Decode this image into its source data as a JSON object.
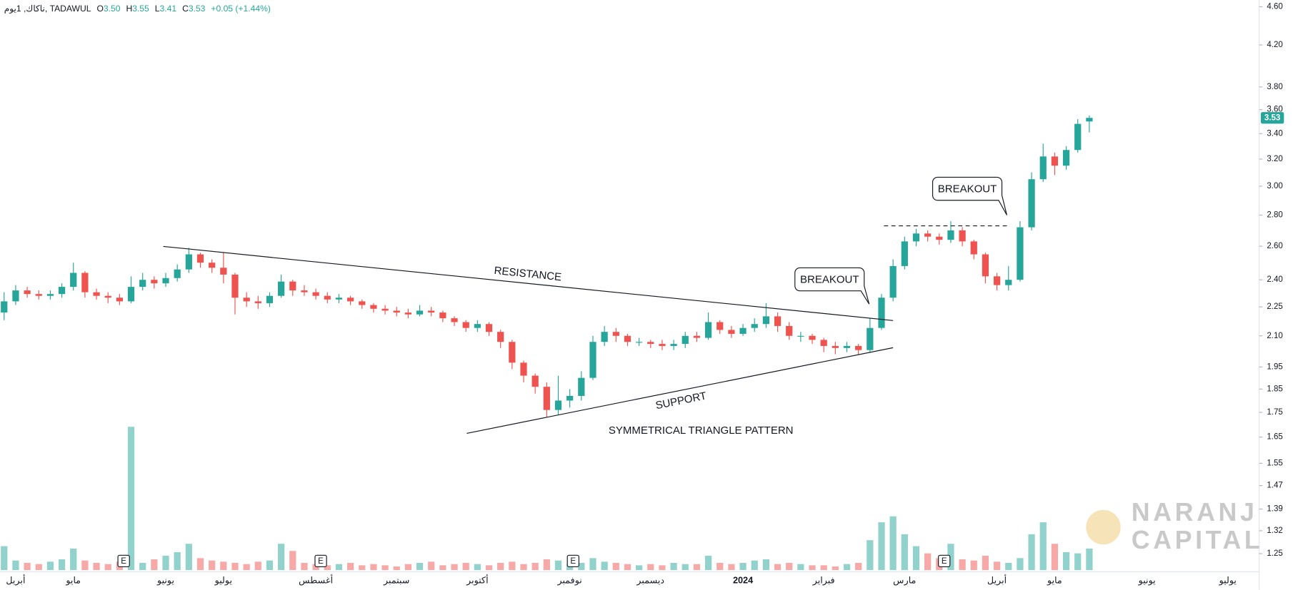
{
  "chart_data": {
    "type": "candlestick",
    "log_scale": true,
    "header": {
      "symbol": "ناكاك, 1يوم, TADAWUL",
      "items": [
        {
          "key": "O",
          "label": "3.50"
        },
        {
          "key": "H",
          "label": "3.55"
        },
        {
          "key": "L",
          "label": "3.41"
        },
        {
          "key": "C",
          "label": "3.53"
        }
      ],
      "change": "+0.05 (+1.44%)"
    },
    "up_color": "#26a69a",
    "down_color": "#ef5350",
    "ylim": [
      1.25,
      4.6
    ],
    "yticks": [
      {
        "value": 4.6,
        "label": "4.60"
      },
      {
        "value": 4.2,
        "label": "4.20"
      },
      {
        "value": 3.8,
        "label": "3.80"
      },
      {
        "value": 3.6,
        "label": "3.60"
      },
      {
        "value": 3.4,
        "label": "3.40"
      },
      {
        "value": 3.2,
        "label": "3.20"
      },
      {
        "value": 3,
        "label": "3.00"
      },
      {
        "value": 2.8,
        "label": "2.80"
      },
      {
        "value": 2.6,
        "label": "2.60"
      },
      {
        "value": 2.4,
        "label": "2.40"
      },
      {
        "value": 2.25,
        "label": "2.25"
      },
      {
        "value": 2.1,
        "label": "2.10"
      },
      {
        "value": 1.95,
        "label": "1.95"
      },
      {
        "value": 1.85,
        "label": "1.85"
      },
      {
        "value": 1.75,
        "label": "1.75"
      },
      {
        "value": 1.65,
        "label": "1.65"
      },
      {
        "value": 1.55,
        "label": "1.55"
      },
      {
        "value": 1.47,
        "label": "1.47"
      },
      {
        "value": 1.39,
        "label": "1.39"
      },
      {
        "value": 1.32,
        "label": "1.32"
      },
      {
        "value": 1.25,
        "label": "1.25"
      }
    ],
    "categories": [
      null,
      "أبريل",
      null,
      null,
      null,
      null,
      "مايو",
      null,
      null,
      null,
      null,
      null,
      null,
      null,
      "يونيو",
      null,
      null,
      null,
      null,
      "يوليو",
      null,
      null,
      null,
      null,
      null,
      null,
      null,
      "أغسطس",
      null,
      null,
      null,
      null,
      null,
      null,
      "سبتمبر",
      null,
      null,
      null,
      null,
      null,
      null,
      "أكتوبر",
      null,
      null,
      null,
      null,
      null,
      null,
      null,
      "نوفمبر",
      null,
      null,
      null,
      null,
      null,
      null,
      "ديسمبر",
      null,
      null,
      null,
      null,
      null,
      null,
      null,
      "2024",
      null,
      null,
      null,
      null,
      null,
      null,
      "فبراير",
      null,
      null,
      null,
      null,
      null,
      null,
      "مارس",
      null,
      null,
      null,
      null,
      null,
      null,
      null,
      "أبريل",
      null,
      null,
      null,
      null,
      "مايو",
      null,
      null,
      null,
      null,
      null,
      null,
      null,
      "يونيو",
      null,
      null,
      null,
      null,
      null,
      null,
      "يوليو"
    ],
    "open": [
      2.22,
      2.28,
      2.34,
      2.32,
      2.31,
      2.32,
      2.36,
      2.44,
      2.33,
      2.31,
      2.3,
      2.28,
      2.36,
      2.4,
      2.38,
      2.41,
      2.46,
      2.55,
      2.5,
      2.47,
      2.43,
      2.3,
      2.28,
      2.27,
      2.31,
      2.39,
      2.34,
      2.33,
      2.31,
      2.29,
      2.3,
      2.28,
      2.26,
      2.24,
      2.23,
      2.22,
      2.21,
      2.23,
      2.22,
      2.19,
      2.17,
      2.14,
      2.16,
      2.12,
      2.07,
      1.97,
      1.91,
      1.86,
      1.76,
      1.8,
      1.82,
      1.9,
      2.07,
      2.12,
      2.1,
      2.07,
      2.07,
      2.06,
      2.05,
      2.06,
      2.1,
      2.09,
      2.17,
      2.13,
      2.11,
      2.14,
      2.16,
      2.2,
      2.15,
      2.1,
      2.1,
      2.08,
      2.05,
      2.04,
      2.05,
      2.03,
      2.14,
      2.3,
      2.48,
      2.63,
      2.68,
      2.66,
      2.64,
      2.7,
      2.63,
      2.55,
      2.42,
      2.37,
      2.4,
      2.72,
      3.05,
      3.22,
      3.15,
      3.27,
      3.5,
      null,
      null,
      null,
      null,
      null,
      null,
      null,
      null,
      null,
      null,
      null,
      null
    ],
    "high": [
      2.33,
      2.37,
      2.36,
      2.34,
      2.34,
      2.38,
      2.5,
      2.45,
      2.35,
      2.33,
      2.32,
      2.42,
      2.44,
      2.42,
      2.44,
      2.49,
      2.59,
      2.56,
      2.52,
      2.56,
      2.44,
      2.33,
      2.31,
      2.33,
      2.43,
      2.4,
      2.37,
      2.35,
      2.33,
      2.32,
      2.31,
      2.29,
      2.27,
      2.26,
      2.25,
      2.24,
      2.26,
      2.25,
      2.23,
      2.2,
      2.18,
      2.18,
      2.17,
      2.13,
      2.08,
      1.98,
      1.92,
      1.88,
      1.91,
      1.85,
      1.93,
      2.1,
      2.15,
      2.14,
      2.11,
      2.09,
      2.08,
      2.08,
      2.08,
      2.12,
      2.12,
      2.22,
      2.18,
      2.15,
      2.16,
      2.19,
      2.27,
      2.22,
      2.17,
      2.12,
      2.11,
      2.09,
      2.07,
      2.07,
      2.06,
      2.19,
      2.32,
      2.52,
      2.66,
      2.71,
      2.7,
      2.68,
      2.76,
      2.72,
      2.64,
      2.56,
      2.44,
      2.48,
      2.76,
      3.1,
      3.32,
      3.25,
      3.3,
      3.52,
      3.55,
      null,
      null,
      null,
      null,
      null,
      null,
      null,
      null,
      null,
      null,
      null,
      null
    ],
    "low": [
      2.18,
      2.26,
      2.3,
      2.29,
      2.29,
      2.3,
      2.34,
      2.3,
      2.29,
      2.27,
      2.26,
      2.27,
      2.34,
      2.35,
      2.36,
      2.39,
      2.44,
      2.47,
      2.44,
      2.38,
      2.21,
      2.25,
      2.24,
      2.25,
      2.3,
      2.31,
      2.31,
      2.29,
      2.27,
      2.27,
      2.26,
      2.24,
      2.22,
      2.21,
      2.2,
      2.19,
      2.2,
      2.2,
      2.17,
      2.15,
      2.12,
      2.12,
      2.1,
      2.04,
      1.94,
      1.88,
      1.83,
      1.73,
      1.74,
      1.77,
      1.8,
      1.89,
      2.05,
      2.07,
      2.05,
      2.05,
      2.04,
      2.03,
      2.03,
      2.04,
      2.07,
      2.08,
      2.11,
      2.09,
      2.1,
      2.12,
      2.14,
      2.12,
      2.08,
      2.07,
      2.06,
      2.02,
      2.01,
      2.02,
      2.01,
      2.02,
      2.13,
      2.28,
      2.46,
      2.6,
      2.63,
      2.61,
      2.62,
      2.6,
      2.52,
      2.38,
      2.34,
      2.34,
      2.39,
      2.7,
      3.03,
      3.08,
      3.12,
      3.25,
      3.41,
      null,
      null,
      null,
      null,
      null,
      null,
      null,
      null,
      null,
      null,
      null,
      null
    ],
    "close": [
      2.28,
      2.34,
      2.32,
      2.31,
      2.32,
      2.36,
      2.44,
      2.33,
      2.31,
      2.3,
      2.28,
      2.36,
      2.4,
      2.38,
      2.41,
      2.46,
      2.55,
      2.5,
      2.47,
      2.43,
      2.3,
      2.28,
      2.27,
      2.31,
      2.39,
      2.34,
      2.33,
      2.31,
      2.29,
      2.3,
      2.28,
      2.26,
      2.24,
      2.23,
      2.22,
      2.21,
      2.23,
      2.22,
      2.19,
      2.17,
      2.14,
      2.16,
      2.12,
      2.07,
      1.97,
      1.91,
      1.86,
      1.76,
      1.8,
      1.82,
      1.9,
      2.07,
      2.12,
      2.1,
      2.07,
      2.07,
      2.06,
      2.05,
      2.06,
      2.1,
      2.09,
      2.17,
      2.13,
      2.11,
      2.14,
      2.16,
      2.2,
      2.15,
      2.1,
      2.1,
      2.08,
      2.05,
      2.04,
      2.05,
      2.03,
      2.14,
      2.3,
      2.48,
      2.63,
      2.68,
      2.66,
      2.64,
      2.7,
      2.63,
      2.55,
      2.42,
      2.37,
      2.4,
      2.72,
      3.05,
      3.22,
      3.15,
      3.27,
      3.48,
      3.53,
      null,
      null,
      null,
      null,
      null,
      null,
      null,
      null,
      null,
      null,
      null,
      null
    ],
    "volume": [
      20,
      8,
      6,
      5,
      7,
      9,
      18,
      8,
      6,
      5,
      7,
      120,
      6,
      9,
      12,
      15,
      22,
      10,
      8,
      7,
      6,
      5,
      7,
      8,
      22,
      16,
      6,
      5,
      4,
      5,
      6,
      4,
      5,
      4,
      3,
      5,
      6,
      7,
      4,
      5,
      6,
      5,
      4,
      6,
      7,
      5,
      6,
      9,
      8,
      5,
      6,
      10,
      7,
      6,
      5,
      4,
      5,
      4,
      6,
      5,
      5,
      12,
      6,
      5,
      6,
      8,
      9,
      5,
      6,
      5,
      4,
      4,
      3,
      5,
      6,
      25,
      40,
      45,
      30,
      20,
      14,
      10,
      22,
      9,
      8,
      12,
      7,
      6,
      10,
      30,
      40,
      22,
      15,
      14,
      18,
      null,
      null,
      null,
      null,
      null,
      null,
      null,
      null,
      null,
      null,
      null,
      null
    ],
    "annotations": [
      "RESISTANCE",
      "SUPPORT",
      "SYMMETRICAL TRIANGLE PATTERN",
      "BREAKOUT",
      "BREAKOUT"
    ],
    "events": [
      "E",
      "E",
      "E",
      "E"
    ],
    "watermark": [
      "NARANJ",
      "CAPITAL"
    ]
  }
}
